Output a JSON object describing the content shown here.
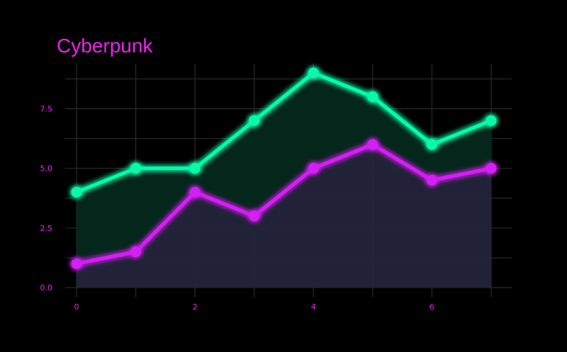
{
  "colors": {
    "background": "#000000",
    "grid": "#2b2b2b",
    "text": "#ee22ee",
    "green": "#08f7a8",
    "magenta": "#d020f0",
    "green_fill": "#05281c",
    "magenta_fill": "#23243a"
  },
  "chart_data": {
    "type": "area",
    "title": "Cyberpunk",
    "xlabel": "",
    "ylabel": "",
    "x": [
      0,
      1,
      2,
      3,
      4,
      5,
      6,
      7
    ],
    "series": [
      {
        "values": [
          4,
          5,
          5,
          7,
          9,
          8,
          6,
          7
        ],
        "color": "#08f7a8"
      },
      {
        "values": [
          1,
          1.5,
          4,
          3,
          5,
          6,
          4.5,
          5
        ],
        "color": "#d020f0"
      }
    ],
    "xlim": [
      0,
      7
    ],
    "ylim": [
      0,
      9
    ],
    "xticks": [
      0,
      2,
      4,
      6
    ],
    "xtick_labels": [
      "0",
      "2",
      "4",
      "6"
    ],
    "yticks": [
      0,
      2.5,
      5,
      7.5
    ],
    "ytick_labels": [
      "0.0",
      "2.5",
      "5.0",
      "7.5"
    ],
    "grid": true,
    "glow": true,
    "legend": "none"
  }
}
